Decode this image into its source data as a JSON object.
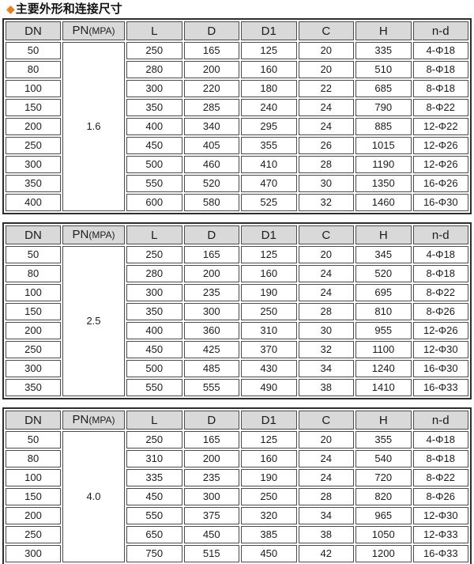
{
  "title": {
    "icon_glyph": "◆",
    "text": "主要外形和连接尺寸"
  },
  "columns": [
    "DN",
    "PN(MPA)",
    "L",
    "D",
    "D1",
    "C",
    "H",
    "n-d"
  ],
  "tables": [
    {
      "pn": "1.6",
      "rows": [
        [
          "50",
          "250",
          "165",
          "125",
          "20",
          "335",
          "4-Φ18"
        ],
        [
          "80",
          "280",
          "200",
          "160",
          "20",
          "510",
          "8-Φ18"
        ],
        [
          "100",
          "300",
          "220",
          "180",
          "22",
          "685",
          "8-Φ18"
        ],
        [
          "150",
          "350",
          "285",
          "240",
          "24",
          "790",
          "8-Φ22"
        ],
        [
          "200",
          "400",
          "340",
          "295",
          "24",
          "885",
          "12-Φ22"
        ],
        [
          "250",
          "450",
          "405",
          "355",
          "26",
          "1015",
          "12-Φ26"
        ],
        [
          "300",
          "500",
          "460",
          "410",
          "28",
          "1190",
          "12-Φ26"
        ],
        [
          "350",
          "550",
          "520",
          "470",
          "30",
          "1350",
          "16-Φ26"
        ],
        [
          "400",
          "600",
          "580",
          "525",
          "32",
          "1460",
          "16-Φ30"
        ]
      ]
    },
    {
      "pn": "2.5",
      "rows": [
        [
          "50",
          "250",
          "165",
          "125",
          "20",
          "345",
          "4-Φ18"
        ],
        [
          "80",
          "280",
          "200",
          "160",
          "24",
          "520",
          "8-Φ18"
        ],
        [
          "100",
          "300",
          "235",
          "190",
          "24",
          "695",
          "8-Φ22"
        ],
        [
          "150",
          "350",
          "300",
          "250",
          "28",
          "810",
          "8-Φ26"
        ],
        [
          "200",
          "400",
          "360",
          "310",
          "30",
          "955",
          "12-Φ26"
        ],
        [
          "250",
          "450",
          "425",
          "370",
          "32",
          "1100",
          "12-Φ30"
        ],
        [
          "300",
          "500",
          "485",
          "430",
          "34",
          "1240",
          "16-Φ30"
        ],
        [
          "350",
          "550",
          "555",
          "490",
          "38",
          "1410",
          "16-Φ33"
        ]
      ]
    },
    {
      "pn": "4.0",
      "rows": [
        [
          "50",
          "250",
          "165",
          "125",
          "20",
          "355",
          "4-Φ18"
        ],
        [
          "80",
          "310",
          "200",
          "160",
          "24",
          "540",
          "8-Φ18"
        ],
        [
          "100",
          "335",
          "235",
          "190",
          "24",
          "720",
          "8-Φ22"
        ],
        [
          "150",
          "450",
          "300",
          "250",
          "28",
          "820",
          "8-Φ26"
        ],
        [
          "200",
          "550",
          "375",
          "320",
          "34",
          "965",
          "12-Φ30"
        ],
        [
          "250",
          "650",
          "450",
          "385",
          "38",
          "1050",
          "12-Φ33"
        ],
        [
          "300",
          "750",
          "515",
          "450",
          "42",
          "1200",
          "16-Φ33"
        ]
      ]
    }
  ],
  "colors": {
    "accent_diamond": "#ee7c1b",
    "header_bg": "#d9d9d9",
    "border": "#3f3f3f"
  }
}
